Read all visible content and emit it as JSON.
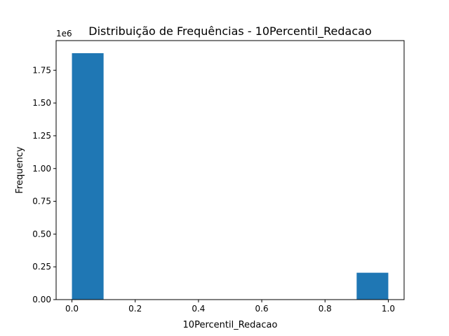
{
  "chart_data": {
    "type": "bar",
    "title": "Distribuição de Frequências - 10Percentil_Redacao",
    "xlabel": "10Percentil_Redacao",
    "ylabel": "Frequency",
    "y_offset_label": "1e6",
    "xlim": [
      -0.05,
      1.05
    ],
    "ylim": [
      0,
      1976000
    ],
    "bins": [
      {
        "start": 0.0,
        "end": 0.1,
        "value": 1880000
      },
      {
        "start": 0.1,
        "end": 0.2,
        "value": 0
      },
      {
        "start": 0.2,
        "end": 0.3,
        "value": 0
      },
      {
        "start": 0.3,
        "end": 0.4,
        "value": 0
      },
      {
        "start": 0.4,
        "end": 0.5,
        "value": 0
      },
      {
        "start": 0.5,
        "end": 0.6,
        "value": 0
      },
      {
        "start": 0.6,
        "end": 0.7,
        "value": 0
      },
      {
        "start": 0.7,
        "end": 0.8,
        "value": 0
      },
      {
        "start": 0.8,
        "end": 0.9,
        "value": 0
      },
      {
        "start": 0.9,
        "end": 1.0,
        "value": 205000
      }
    ],
    "x_ticks": [
      {
        "value": 0.0,
        "label": "0.0"
      },
      {
        "value": 0.2,
        "label": "0.2"
      },
      {
        "value": 0.4,
        "label": "0.4"
      },
      {
        "value": 0.6,
        "label": "0.6"
      },
      {
        "value": 0.8,
        "label": "0.8"
      },
      {
        "value": 1.0,
        "label": "1.0"
      }
    ],
    "y_ticks": [
      {
        "value": 0,
        "label": "0.00"
      },
      {
        "value": 250000,
        "label": "0.25"
      },
      {
        "value": 500000,
        "label": "0.50"
      },
      {
        "value": 750000,
        "label": "0.75"
      },
      {
        "value": 1000000,
        "label": "1.00"
      },
      {
        "value": 1250000,
        "label": "1.25"
      },
      {
        "value": 1500000,
        "label": "1.50"
      },
      {
        "value": 1750000,
        "label": "1.75"
      }
    ],
    "bar_color": "#1f77b4",
    "grid": false,
    "legend": "none"
  }
}
